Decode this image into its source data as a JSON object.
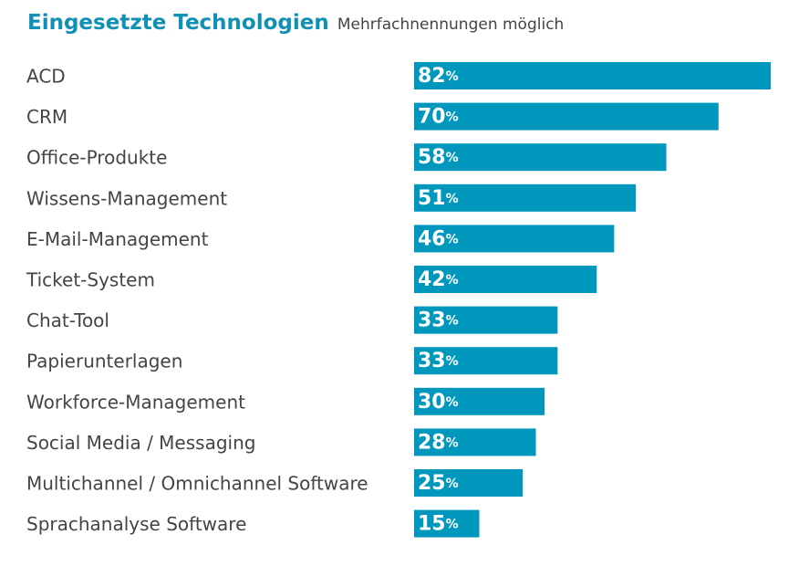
{
  "chart_data": {
    "type": "bar",
    "orientation": "horizontal",
    "title": "Eingesetzte Technologien",
    "subtitle": "Mehrfachnennungen möglich",
    "unit": "%",
    "bar_color": "#0097bd",
    "title_color": "#1090b4",
    "categories": [
      "ACD",
      "CRM",
      "Office-Produkte",
      "Wissens-Management",
      "E-Mail-Management",
      "Ticket-System",
      "Chat-Tool",
      "Papierunterlagen",
      "Workforce-Management",
      "Social Media / Messaging",
      "Multichannel / Omnichannel Software",
      "Sprachanalyse Software"
    ],
    "values": [
      82,
      70,
      58,
      51,
      46,
      42,
      33,
      33,
      30,
      28,
      25,
      15
    ],
    "xlim": [
      0,
      82
    ],
    "grid": false,
    "legend": "none"
  }
}
